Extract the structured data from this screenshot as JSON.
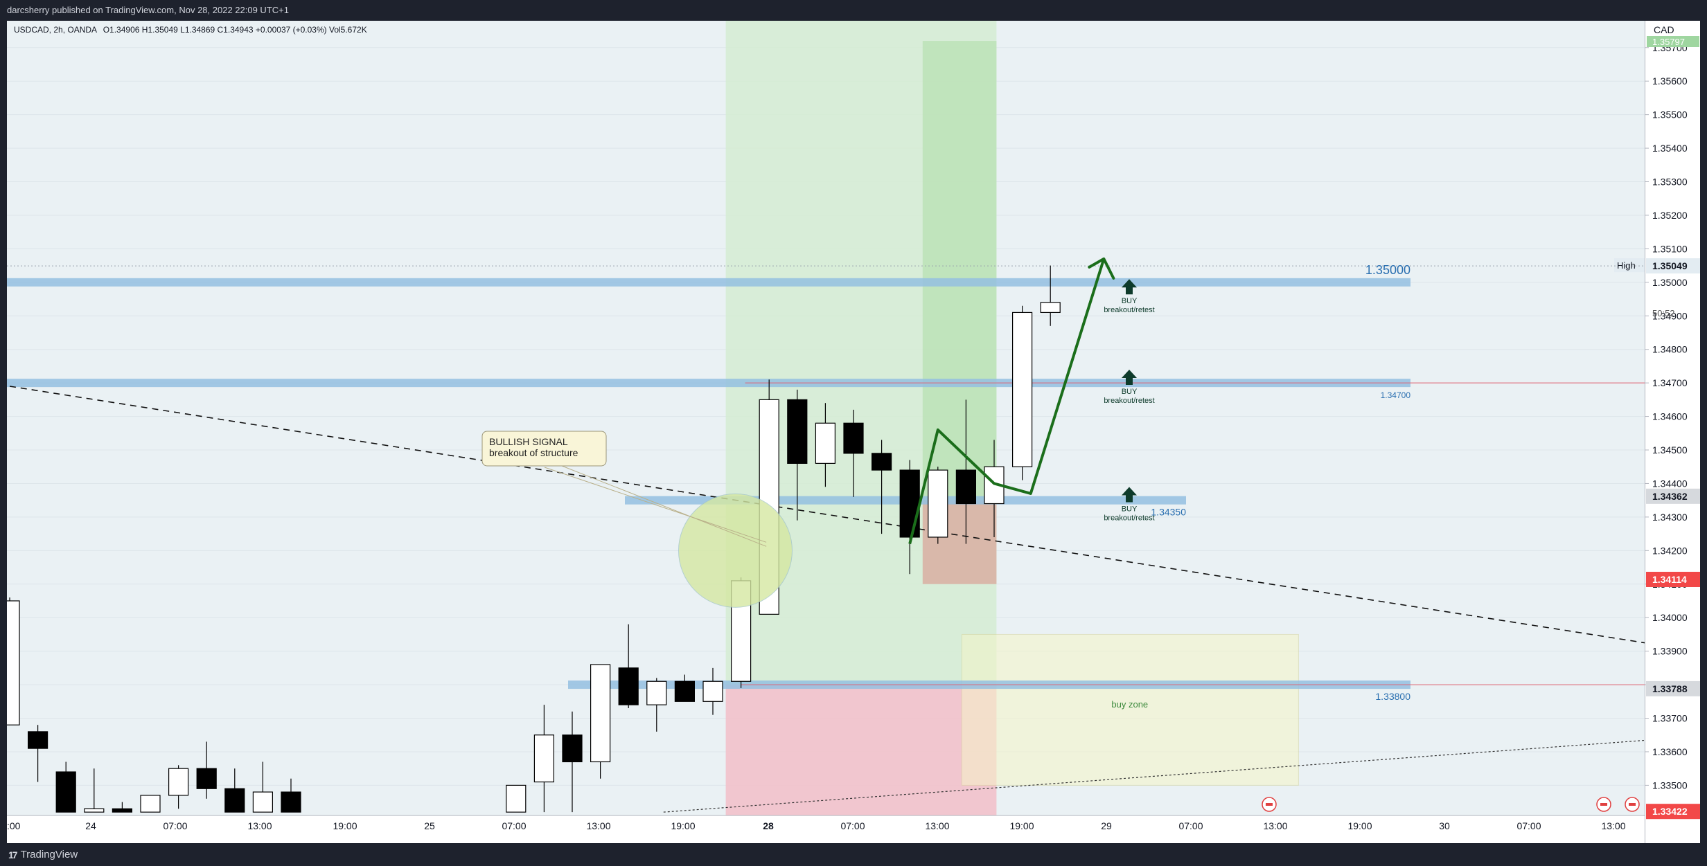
{
  "header": {
    "publish_line": "darcsherry published on TradingView.com, Nov 28, 2022 22:09 UTC+1"
  },
  "legend": {
    "symbol_line": "USDCAD, 2h, OANDA",
    "ohlc": "O1.34906 H1.35049 L1.34869 C1.34943 +0.00037 (+0.03%) Vol5.672K"
  },
  "footer": {
    "brand": "TradingView",
    "brand_mark": "17"
  },
  "price_axis": {
    "currency": "CAD",
    "high_label": "High",
    "high_value": "1.35049",
    "countdown": "50:52",
    "current_price": "1.34362",
    "red_price": "1.34114",
    "level_price": "1.33788",
    "bottom_price": "1.33422",
    "top_cut": "1.35797"
  },
  "colors": {
    "bull_body": "#ffffff",
    "bear_body": "#000000",
    "level_band": "#94c0e0",
    "profit_zone": "#b7dfb0",
    "loss_zone": "#f2c1cb",
    "arrow": "#1b6e1b",
    "buy_arrow": "#0e3b2b",
    "red_marker": "#f24848"
  },
  "annotations": {
    "callout_line1": "BULLISH SIGNAL",
    "callout_line2": "breakout of structure",
    "buy_zone": "buy zone",
    "buy_labels": [
      {
        "line1": "BUY",
        "line2": "breakout/retest"
      },
      {
        "line1": "BUY",
        "line2": "breakout/retest"
      },
      {
        "line1": "BUY",
        "line2": "breakout/retest"
      }
    ],
    "level_labels": [
      "1.35000",
      "1.34700",
      "1.34350",
      "1.33800"
    ]
  },
  "chart_data": {
    "type": "candlestick",
    "symbol": "USDCAD",
    "timeframe": "2h",
    "ylim": [
      1.3341,
      1.3578
    ],
    "y_ticks": [
      1.357,
      1.356,
      1.355,
      1.354,
      1.353,
      1.352,
      1.351,
      1.35,
      1.349,
      1.348,
      1.347,
      1.346,
      1.345,
      1.344,
      1.343,
      1.342,
      1.341,
      1.34,
      1.339,
      1.338,
      1.337,
      1.336,
      1.335
    ],
    "y_tick_labels": [
      "1.35700",
      "1.35600",
      "1.35500",
      "1.35400",
      "1.35300",
      "1.35200",
      "1.35100",
      "1.35000",
      "1.34900",
      "1.34800",
      "1.34700",
      "1.34600",
      "1.34500",
      "1.34400",
      "1.34300",
      "1.34200",
      "1.34100",
      "1.34000",
      "1.33900",
      "1.33800",
      "1.33700",
      "1.33600",
      "1.33500"
    ],
    "x_tick_labels": [
      ":00",
      "24",
      "07:00",
      "13:00",
      "19:00",
      "25",
      "07:00",
      "13:00",
      "19:00",
      "28",
      "07:00",
      "13:00",
      "19:00",
      "29",
      "07:00",
      "13:00",
      "19:00",
      "30",
      "07:00",
      "13:00"
    ],
    "bold_x_tick": "28",
    "candles": [
      {
        "i": 0,
        "o": 1.3368,
        "h": 1.3406,
        "l": 1.3368,
        "c": 1.3405
      },
      {
        "i": 1,
        "o": 1.3366,
        "h": 1.3368,
        "l": 1.3351,
        "c": 1.3361
      },
      {
        "i": 2,
        "o": 1.3354,
        "h": 1.3357,
        "l": 1.3342,
        "c": 1.3342
      },
      {
        "i": 3,
        "o": 1.3342,
        "h": 1.3355,
        "l": 1.3342,
        "c": 1.3343
      },
      {
        "i": 4,
        "o": 1.3343,
        "h": 1.3345,
        "l": 1.3342,
        "c": 1.3342
      },
      {
        "i": 5,
        "o": 1.3342,
        "h": 1.3347,
        "l": 1.3342,
        "c": 1.3347
      },
      {
        "i": 6,
        "o": 1.3347,
        "h": 1.3356,
        "l": 1.3343,
        "c": 1.3355
      },
      {
        "i": 7,
        "o": 1.3355,
        "h": 1.3363,
        "l": 1.3346,
        "c": 1.3349
      },
      {
        "i": 8,
        "o": 1.3349,
        "h": 1.3355,
        "l": 1.3342,
        "c": 1.3342
      },
      {
        "i": 9,
        "o": 1.3342,
        "h": 1.3357,
        "l": 1.3342,
        "c": 1.3348
      },
      {
        "i": 10,
        "o": 1.3348,
        "h": 1.3352,
        "l": 1.3342,
        "c": 1.3342
      },
      {
        "i": 18,
        "o": 1.3342,
        "h": 1.335,
        "l": 1.3342,
        "c": 1.335
      },
      {
        "i": 19,
        "o": 1.3351,
        "h": 1.3374,
        "l": 1.3342,
        "c": 1.3365
      },
      {
        "i": 20,
        "o": 1.3365,
        "h": 1.3372,
        "l": 1.3342,
        "c": 1.3357
      },
      {
        "i": 21,
        "o": 1.3357,
        "h": 1.3386,
        "l": 1.3352,
        "c": 1.3386
      },
      {
        "i": 22,
        "o": 1.3385,
        "h": 1.3398,
        "l": 1.3373,
        "c": 1.3374
      },
      {
        "i": 23,
        "o": 1.3374,
        "h": 1.3382,
        "l": 1.3366,
        "c": 1.3381
      },
      {
        "i": 24,
        "o": 1.3381,
        "h": 1.3383,
        "l": 1.3375,
        "c": 1.3375
      },
      {
        "i": 25,
        "o": 1.3375,
        "h": 1.3385,
        "l": 1.3371,
        "c": 1.3381
      },
      {
        "i": 26,
        "o": 1.3381,
        "h": 1.3412,
        "l": 1.3379,
        "c": 1.3411
      },
      {
        "i": 27,
        "o": 1.3401,
        "h": 1.3471,
        "l": 1.3401,
        "c": 1.3465
      },
      {
        "i": 28,
        "o": 1.3465,
        "h": 1.3468,
        "l": 1.3429,
        "c": 1.3446
      },
      {
        "i": 29,
        "o": 1.3446,
        "h": 1.3464,
        "l": 1.3439,
        "c": 1.3458
      },
      {
        "i": 30,
        "o": 1.3458,
        "h": 1.3462,
        "l": 1.3436,
        "c": 1.3449
      },
      {
        "i": 31,
        "o": 1.3449,
        "h": 1.3453,
        "l": 1.3425,
        "c": 1.3444
      },
      {
        "i": 32,
        "o": 1.3444,
        "h": 1.3447,
        "l": 1.3413,
        "c": 1.3424
      },
      {
        "i": 33,
        "o": 1.3424,
        "h": 1.3445,
        "l": 1.3422,
        "c": 1.3444
      },
      {
        "i": 34,
        "o": 1.3444,
        "h": 1.3465,
        "l": 1.3422,
        "c": 1.3434
      },
      {
        "i": 35,
        "o": 1.3434,
        "h": 1.3453,
        "l": 1.3424,
        "c": 1.3445
      },
      {
        "i": 36,
        "o": 1.3445,
        "h": 1.3493,
        "l": 1.3441,
        "c": 1.3491
      },
      {
        "i": 37,
        "o": 1.3491,
        "h": 1.3505,
        "l": 1.3487,
        "c": 1.3494
      }
    ],
    "horizontal_levels": [
      1.35,
      1.347,
      1.3435,
      1.338
    ],
    "trendline": {
      "from": [
        0,
        1.3469
      ],
      "to": [
        58.5,
        1.3392
      ]
    },
    "position": {
      "entry": 1.338,
      "target": 1.3572,
      "stop": 1.3341
    }
  }
}
